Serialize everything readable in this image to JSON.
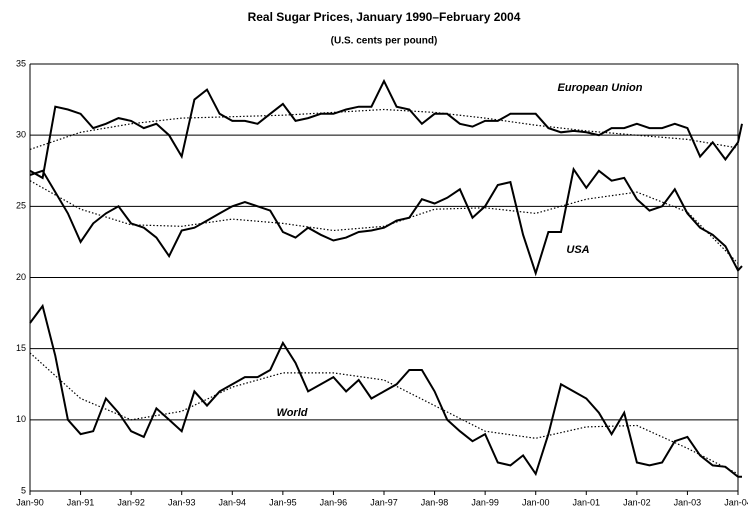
{
  "chart_data": {
    "type": "line",
    "title": "Real Sugar Prices, January 1990–February 2004",
    "subtitle": "(U.S. cents per pound)",
    "xlim": [
      1990,
      2004
    ],
    "xticks": [
      {
        "value": 1990,
        "label": "Jan-90"
      },
      {
        "value": 1991,
        "label": "Jan-91"
      },
      {
        "value": 1992,
        "label": "Jan-92"
      },
      {
        "value": 1993,
        "label": "Jan-93"
      },
      {
        "value": 1994,
        "label": "Jan-94"
      },
      {
        "value": 1995,
        "label": "Jan-95"
      },
      {
        "value": 1996,
        "label": "Jan-96"
      },
      {
        "value": 1997,
        "label": "Jan-97"
      },
      {
        "value": 1998,
        "label": "Jan-98"
      },
      {
        "value": 1999,
        "label": "Jan-99"
      },
      {
        "value": 2000,
        "label": "Jan-00"
      },
      {
        "value": 2001,
        "label": "Jan-01"
      },
      {
        "value": 2002,
        "label": "Jan-02"
      },
      {
        "value": 2003,
        "label": "Jan-03"
      },
      {
        "value": 2004,
        "label": "Jan-04"
      }
    ],
    "ylim": [
      5,
      35
    ],
    "yticks": [
      5,
      10,
      15,
      20,
      25,
      30,
      35
    ],
    "grid": true,
    "series": [
      {
        "name": "European Union",
        "color": "#000000",
        "x": [
          1990,
          1990.25,
          1990.5,
          1990.75,
          1991,
          1991.25,
          1991.5,
          1991.75,
          1992,
          1992.25,
          1992.5,
          1992.75,
          1993,
          1993.25,
          1993.5,
          1993.75,
          1994,
          1994.25,
          1994.5,
          1994.75,
          1995,
          1995.25,
          1995.5,
          1995.75,
          1996,
          1996.25,
          1996.5,
          1996.75,
          1997,
          1997.25,
          1997.5,
          1997.75,
          1998,
          1998.25,
          1998.5,
          1998.75,
          1999,
          1999.25,
          1999.5,
          1999.75,
          2000,
          2000.25,
          2000.5,
          2000.75,
          2001,
          2001.25,
          2001.5,
          2001.75,
          2002,
          2002.25,
          2002.5,
          2002.75,
          2003,
          2003.25,
          2003.5,
          2003.75,
          2004,
          2004.08
        ],
        "values": [
          27.5,
          27,
          32,
          31.8,
          31.5,
          30.5,
          30.8,
          31.2,
          31,
          30.5,
          30.8,
          30,
          28.5,
          32.5,
          33.2,
          31.5,
          31,
          31,
          30.8,
          31.5,
          32.2,
          31,
          31.2,
          31.5,
          31.5,
          31.8,
          32,
          32,
          33.8,
          32,
          31.8,
          30.8,
          31.5,
          31.5,
          30.8,
          30.6,
          31,
          31,
          31.5,
          31.5,
          31.5,
          30.5,
          30.2,
          30.3,
          30.2,
          30,
          30.5,
          30.5,
          30.8,
          30.5,
          30.5,
          30.8,
          30.5,
          28.5,
          29.5,
          28.3,
          29.5,
          30.8
        ]
      },
      {
        "name": "USA",
        "color": "#000000",
        "x": [
          1990,
          1990.25,
          1990.5,
          1990.75,
          1991,
          1991.25,
          1991.5,
          1991.75,
          1992,
          1992.25,
          1992.5,
          1992.75,
          1993,
          1993.25,
          1993.5,
          1993.75,
          1994,
          1994.25,
          1994.5,
          1994.75,
          1995,
          1995.25,
          1995.5,
          1995.75,
          1996,
          1996.25,
          1996.5,
          1996.75,
          1997,
          1997.25,
          1997.5,
          1997.75,
          1998,
          1998.25,
          1998.5,
          1998.75,
          1999,
          1999.25,
          1999.5,
          1999.75,
          2000,
          2000.25,
          2000.5,
          2000.75,
          2001,
          2001.25,
          2001.5,
          2001.75,
          2002,
          2002.25,
          2002.5,
          2002.75,
          2003,
          2003.25,
          2003.5,
          2003.75,
          2004,
          2004.08
        ],
        "values": [
          27.2,
          27.5,
          26,
          24.5,
          22.5,
          23.8,
          24.5,
          25,
          23.8,
          23.5,
          22.8,
          21.5,
          23.3,
          23.5,
          24,
          24.5,
          25,
          25.3,
          25,
          24.7,
          23.2,
          22.8,
          23.5,
          23,
          22.6,
          22.8,
          23.2,
          23.3,
          23.5,
          24,
          24.2,
          25.5,
          25.2,
          25.6,
          26.2,
          24.2,
          25,
          26.5,
          26.7,
          23,
          20.3,
          23.2,
          23.2,
          27.6,
          26.3,
          27.5,
          26.8,
          27,
          25.5,
          24.7,
          25,
          26.2,
          24.5,
          23.5,
          23,
          22.2,
          20.5,
          20.8
        ]
      },
      {
        "name": "World",
        "color": "#000000",
        "x": [
          1990,
          1990.25,
          1990.5,
          1990.75,
          1991,
          1991.25,
          1991.5,
          1991.75,
          1992,
          1992.25,
          1992.5,
          1992.75,
          1993,
          1993.25,
          1993.5,
          1993.75,
          1994,
          1994.25,
          1994.5,
          1994.75,
          1995,
          1995.25,
          1995.5,
          1995.75,
          1996,
          1996.25,
          1996.5,
          1996.75,
          1997,
          1997.25,
          1997.5,
          1997.75,
          1998,
          1998.25,
          1998.5,
          1998.75,
          1999,
          1999.25,
          1999.5,
          1999.75,
          2000,
          2000.25,
          2000.5,
          2000.75,
          2001,
          2001.25,
          2001.5,
          2001.75,
          2002,
          2002.25,
          2002.5,
          2002.75,
          2003,
          2003.25,
          2003.5,
          2003.75,
          2004,
          2004.08
        ],
        "values": [
          16.8,
          18,
          14.5,
          10,
          9,
          9.2,
          11.5,
          10.5,
          9.2,
          8.8,
          10.8,
          10,
          9.2,
          12,
          11,
          12,
          12.5,
          13,
          13,
          13.5,
          15.4,
          14,
          12,
          12.5,
          13,
          12,
          12.8,
          11.5,
          12,
          12.5,
          13.5,
          13.5,
          12,
          10,
          9.2,
          8.5,
          9,
          7,
          6.8,
          7.5,
          6.2,
          9,
          12.5,
          12,
          11.5,
          10.5,
          9,
          10.5,
          7,
          6.8,
          7,
          8.5,
          8.8,
          7.5,
          6.8,
          6.7,
          6,
          6
        ]
      },
      {
        "color": "#000000",
        "dotted": true,
        "x": [
          1990,
          1991,
          1992,
          1993,
          1994,
          1995,
          1996,
          1997,
          1998,
          1999,
          2000,
          2001,
          2002,
          2003,
          2004
        ],
        "values": [
          29,
          30.2,
          30.8,
          31.2,
          31.3,
          31.4,
          31.6,
          31.8,
          31.6,
          31.2,
          30.7,
          30.3,
          30,
          29.7,
          29.1
        ]
      },
      {
        "color": "#000000",
        "dotted": true,
        "x": [
          1990,
          1991,
          1992,
          1993,
          1994,
          1995,
          1996,
          1997,
          1998,
          1999,
          2000,
          2001,
          2002,
          2003,
          2004
        ],
        "values": [
          26.8,
          24.8,
          23.7,
          23.6,
          24.1,
          23.8,
          23.3,
          23.6,
          24.8,
          24.9,
          24.5,
          25.5,
          26,
          24.6,
          21
        ]
      },
      {
        "color": "#000000",
        "dotted": true,
        "x": [
          1990,
          1991,
          1992,
          1993,
          1994,
          1995,
          1996,
          1997,
          1998,
          1999,
          2000,
          2001,
          2002,
          2003,
          2004
        ],
        "values": [
          14.7,
          11.5,
          10,
          10.6,
          12.3,
          13.3,
          13.3,
          12.8,
          11,
          9.2,
          8.7,
          9.5,
          9.6,
          8,
          6.2
        ]
      }
    ]
  }
}
